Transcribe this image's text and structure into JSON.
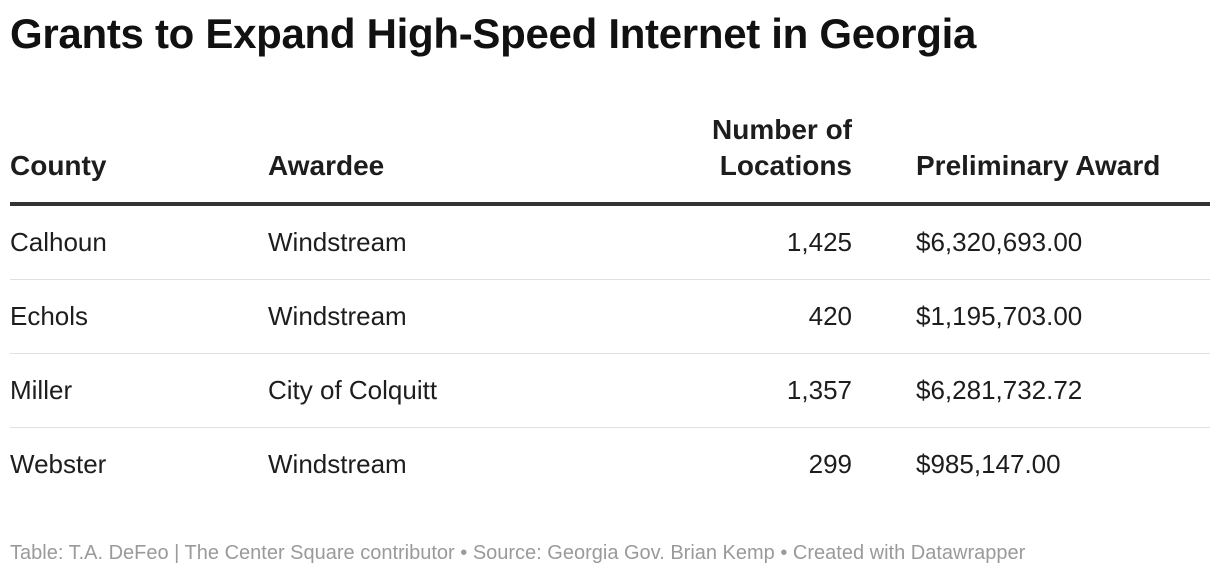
{
  "title": "Grants to Expand High-Speed Internet in Georgia",
  "footer": "Table: T.A. DeFeo | The Center Square contributor • Source: Georgia Gov. Brian Kemp • Created with Datawrapper",
  "chart_data": {
    "type": "table",
    "title": "Grants to Expand High-Speed Internet in Georgia",
    "columns": [
      "County",
      "Awardee",
      "Number of Locations",
      "Preliminary Award"
    ],
    "rows": [
      [
        "Calhoun",
        "Windstream",
        "1,425",
        "$6,320,693.00"
      ],
      [
        "Echols",
        "Windstream",
        "420",
        "$1,195,703.00"
      ],
      [
        "Miller",
        "City of Colquitt",
        "1,357",
        "$6,281,732.72"
      ],
      [
        "Webster",
        "Windstream",
        "299",
        "$985,147.00"
      ]
    ]
  }
}
